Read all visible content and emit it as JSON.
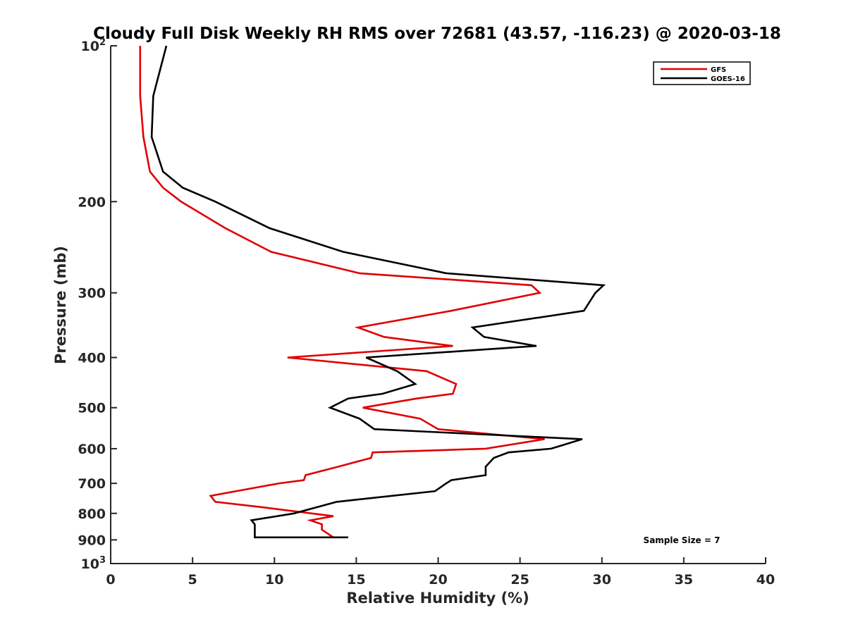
{
  "chart_data": {
    "type": "line",
    "title": "Cloudy Full Disk Weekly RH RMS over 72681 (43.57, -116.23) @ 2020-03-18",
    "xlabel": "Relative Humidity (%)",
    "ylabel": "Pressure (mb)",
    "xlim": [
      0,
      40
    ],
    "ylim": [
      100,
      1000
    ],
    "y_scale": "log",
    "y_reversed": true,
    "grid": false,
    "legend_position": "top-right",
    "x_ticks": [
      0,
      5,
      10,
      15,
      20,
      25,
      30,
      35,
      40
    ],
    "y_ticks": [
      {
        "value": 100,
        "base": "10",
        "exp": "2"
      },
      {
        "value": 200,
        "label": "200"
      },
      {
        "value": 300,
        "label": "300"
      },
      {
        "value": 400,
        "label": "400"
      },
      {
        "value": 500,
        "label": "500"
      },
      {
        "value": 600,
        "label": "600"
      },
      {
        "value": 700,
        "label": "700"
      },
      {
        "value": 800,
        "label": "800"
      },
      {
        "value": 900,
        "label": "900"
      },
      {
        "value": 1000,
        "base": "10",
        "exp": "3"
      }
    ],
    "annotation": "Sample Size = 7",
    "series": [
      {
        "name": "GFS",
        "color": "#e00000",
        "points": [
          [
            1.8,
            100
          ],
          [
            1.8,
            125
          ],
          [
            2.0,
            150
          ],
          [
            2.4,
            175
          ],
          [
            3.2,
            188
          ],
          [
            4.3,
            200
          ],
          [
            7.0,
            225
          ],
          [
            9.8,
            250
          ],
          [
            15.2,
            275
          ],
          [
            25.7,
            290
          ],
          [
            26.2,
            300
          ],
          [
            20.8,
            325
          ],
          [
            15.1,
            350
          ],
          [
            16.7,
            365
          ],
          [
            20.9,
            380
          ],
          [
            10.8,
            400
          ],
          [
            19.3,
            425
          ],
          [
            21.1,
            450
          ],
          [
            20.9,
            470
          ],
          [
            18.7,
            480
          ],
          [
            15.4,
            500
          ],
          [
            18.9,
            525
          ],
          [
            20.0,
            550
          ],
          [
            26.5,
            575
          ],
          [
            22.9,
            600
          ],
          [
            16.0,
            610
          ],
          [
            15.9,
            625
          ],
          [
            13.9,
            650
          ],
          [
            11.9,
            675
          ],
          [
            11.8,
            690
          ],
          [
            10.3,
            700
          ],
          [
            6.1,
            740
          ],
          [
            6.4,
            760
          ],
          [
            9.5,
            780
          ],
          [
            13.6,
            810
          ],
          [
            12.2,
            825
          ],
          [
            12.9,
            840
          ],
          [
            12.9,
            860
          ],
          [
            13.6,
            890
          ]
        ]
      },
      {
        "name": "GOES-16",
        "color": "#000000",
        "points": [
          [
            3.4,
            100
          ],
          [
            2.6,
            125
          ],
          [
            2.5,
            150
          ],
          [
            3.2,
            175
          ],
          [
            4.4,
            188
          ],
          [
            6.4,
            200
          ],
          [
            9.7,
            225
          ],
          [
            14.2,
            250
          ],
          [
            20.5,
            275
          ],
          [
            30.1,
            290
          ],
          [
            29.6,
            300
          ],
          [
            28.9,
            325
          ],
          [
            22.1,
            350
          ],
          [
            22.8,
            365
          ],
          [
            26.0,
            380
          ],
          [
            15.6,
            400
          ],
          [
            17.5,
            425
          ],
          [
            18.6,
            450
          ],
          [
            16.6,
            470
          ],
          [
            14.5,
            480
          ],
          [
            13.4,
            500
          ],
          [
            15.2,
            525
          ],
          [
            16.1,
            550
          ],
          [
            28.8,
            575
          ],
          [
            26.9,
            600
          ],
          [
            24.3,
            610
          ],
          [
            23.4,
            625
          ],
          [
            22.9,
            650
          ],
          [
            22.9,
            675
          ],
          [
            20.8,
            690
          ],
          [
            20.5,
            700
          ],
          [
            19.8,
            725
          ],
          [
            13.8,
            760
          ],
          [
            11.2,
            800
          ],
          [
            8.6,
            825
          ],
          [
            8.8,
            840
          ],
          [
            8.8,
            890
          ],
          [
            14.5,
            890
          ]
        ]
      }
    ]
  }
}
